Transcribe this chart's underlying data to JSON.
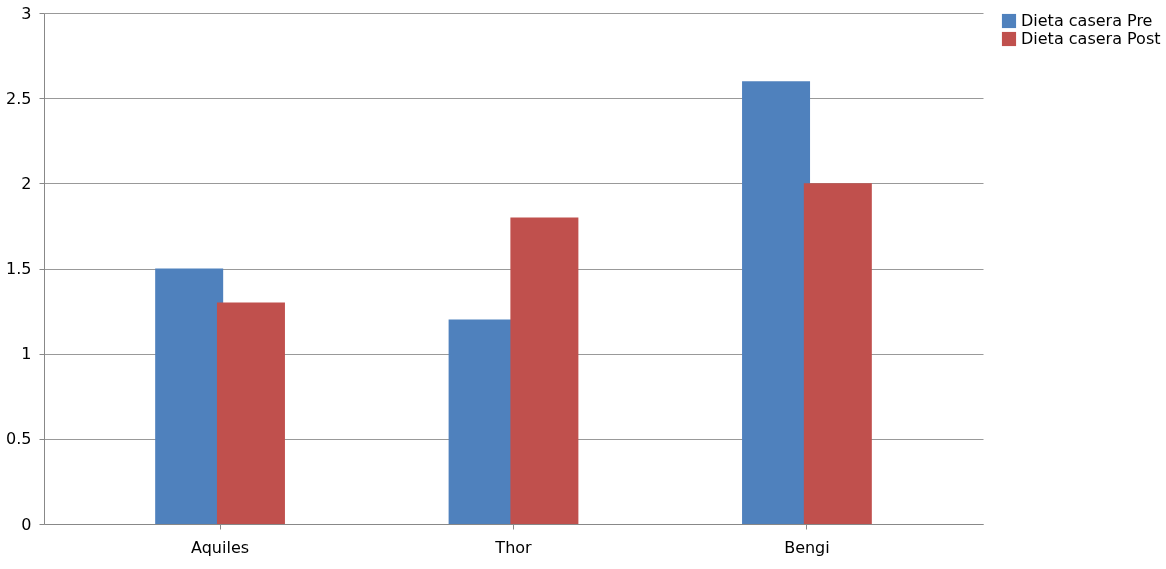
{
  "chart_data": {
    "type": "bar",
    "categories": [
      "Aquiles",
      "Thor",
      "Bengi"
    ],
    "series": [
      {
        "name": "Dieta casera Pre",
        "color": "#4f81bd",
        "values": [
          1.5,
          1.2,
          2.6
        ]
      },
      {
        "name": "Dieta casera Post",
        "color": "#c0504d",
        "values": [
          1.3,
          1.8,
          2.0
        ]
      }
    ],
    "ylim": [
      0,
      3
    ],
    "yticks": [
      0,
      0.5,
      1,
      1.5,
      2,
      2.5,
      3
    ],
    "grid": "y",
    "legend": "right"
  }
}
